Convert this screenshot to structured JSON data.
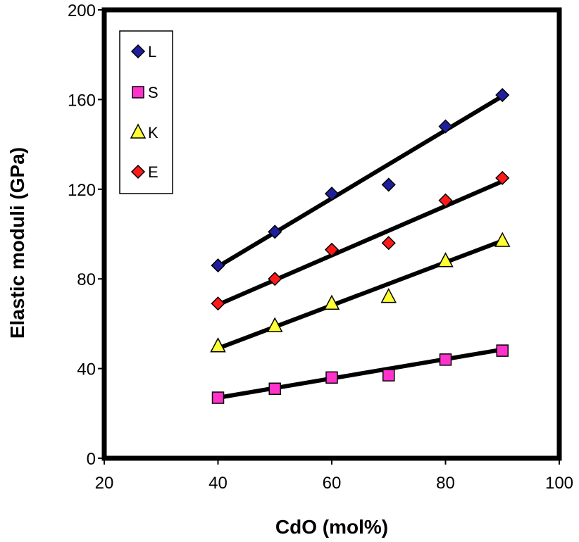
{
  "chart_data": {
    "type": "scatter",
    "xlabel": "CdO (mol%)",
    "ylabel": "Elastic moduli (GPa)",
    "xlim": [
      20,
      100
    ],
    "ylim": [
      0,
      200
    ],
    "xticks": [
      20,
      40,
      60,
      80,
      100
    ],
    "yticks": [
      0,
      40,
      80,
      120,
      160,
      200
    ],
    "x_tick_labels": [
      "20",
      "40",
      "60",
      "80",
      "100"
    ],
    "y_tick_labels": [
      "0",
      "40",
      "80",
      "120",
      "160",
      "200"
    ],
    "grid": false,
    "legend_position": "top-left",
    "x": [
      40,
      50,
      60,
      70,
      80,
      90
    ],
    "series": [
      {
        "name": "L",
        "marker": "diamond",
        "color": "#1f1f9e",
        "values": [
          86,
          101,
          118,
          122,
          148,
          162
        ],
        "fit_line": [
          85.5,
          161.5
        ]
      },
      {
        "name": "S",
        "marker": "square",
        "color": "#ff33cc",
        "values": [
          27,
          31,
          36,
          37,
          44,
          48
        ],
        "fit_line": [
          27,
          48.5
        ]
      },
      {
        "name": "K",
        "marker": "triangle",
        "color": "#ffff33",
        "values": [
          50,
          59,
          69,
          72,
          88,
          97
        ],
        "fit_line": [
          49,
          97
        ]
      },
      {
        "name": "E",
        "marker": "diamond",
        "color": "#ff1a1a",
        "values": [
          69,
          80,
          93,
          96,
          115,
          125
        ],
        "fit_line": [
          68.5,
          123.5
        ]
      }
    ]
  }
}
